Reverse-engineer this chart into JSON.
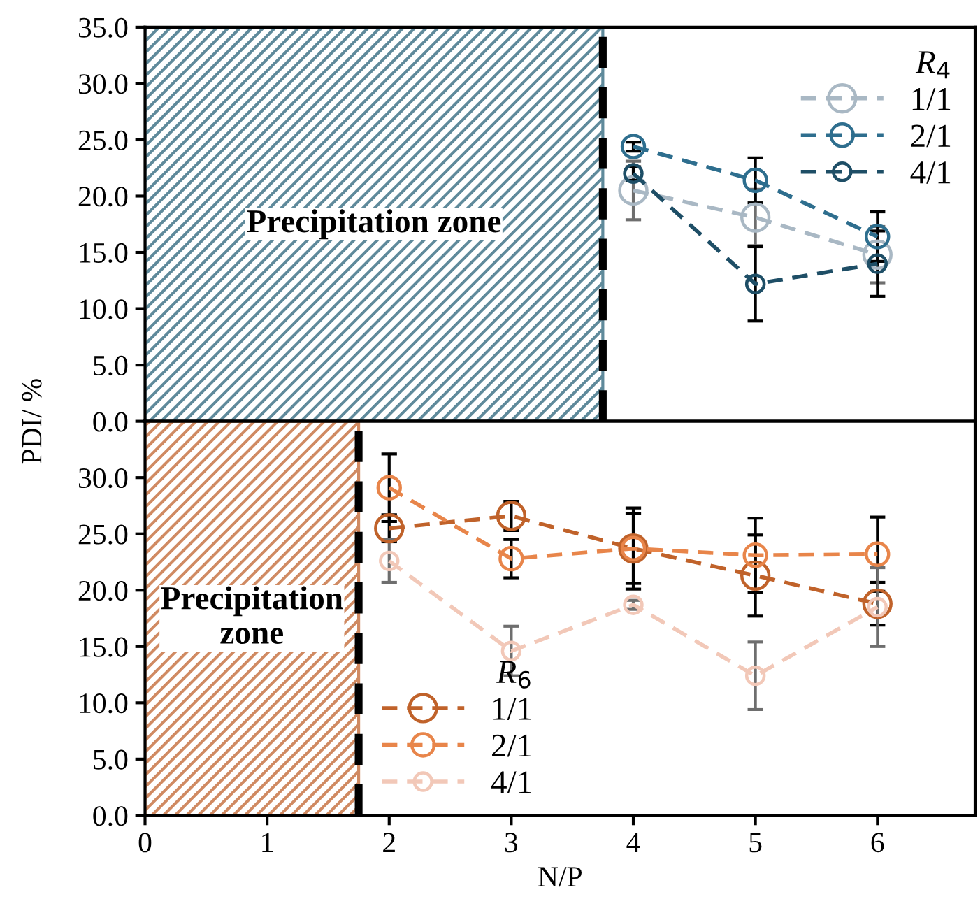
{
  "chart_data": [
    {
      "type": "line",
      "ylabel": "PDI/ %",
      "legend_title": "R$_{4}$",
      "xlim": [
        0,
        6.8
      ],
      "ylim": [
        0,
        35
      ],
      "yticks": [
        {
          "value": 0,
          "label": "0.0"
        },
        {
          "value": 5,
          "label": "5.0"
        },
        {
          "value": 10,
          "label": "10.0"
        },
        {
          "value": 15,
          "label": "15.0"
        },
        {
          "value": 20,
          "label": "20.0"
        },
        {
          "value": 25,
          "label": "25.0"
        },
        {
          "value": 30,
          "label": "30.0"
        },
        {
          "value": 35,
          "label": "35.0"
        }
      ],
      "tick_labels": "y",
      "marker": "circle",
      "line_style": "dashed",
      "grid": false,
      "legend": "top right",
      "bands": [
        {
          "axis": "x",
          "from": 0,
          "to": 3.75,
          "label": "Precipitation zone",
          "color": "#5f8a9b"
        }
      ],
      "ref_lines": [
        {
          "axis": "x",
          "value": 3.75,
          "color": "#000000",
          "line_style": "dashed"
        }
      ],
      "series": [
        {
          "name": "1/1",
          "color": "#a9b8c4",
          "x": [
            4,
            5,
            6
          ],
          "values": [
            20.5,
            18.1,
            14.8
          ],
          "errors": [
            2.6,
            2.5,
            2.5
          ]
        },
        {
          "name": "2/1",
          "color": "#2e6e8e",
          "x": [
            4,
            5,
            6
          ],
          "values": [
            24.4,
            21.4,
            16.4
          ],
          "errors": [
            0.4,
            2.0,
            2.2
          ]
        },
        {
          "name": "4/1",
          "color": "#1e4e66",
          "x": [
            4,
            5,
            6
          ],
          "values": [
            22.0,
            12.2,
            14.0
          ],
          "errors": [
            0.6,
            3.3,
            2.9
          ]
        }
      ]
    },
    {
      "type": "line",
      "xlabel": "N/P",
      "legend_title": "R$_{6}$",
      "xlim": [
        0,
        6.8
      ],
      "ylim": [
        0,
        35
      ],
      "xticks": [
        0,
        1,
        2,
        3,
        4,
        5,
        6
      ],
      "yticks": [
        {
          "value": 0,
          "label": "0.0"
        },
        {
          "value": 5,
          "label": "5.0"
        },
        {
          "value": 10,
          "label": "10.0"
        },
        {
          "value": 15,
          "label": "15.0"
        },
        {
          "value": 20,
          "label": "20.0"
        },
        {
          "value": 25,
          "label": "25.0"
        },
        {
          "value": 30,
          "label": "30.0"
        }
      ],
      "marker": "circle",
      "line_style": "dashed",
      "grid": false,
      "legend": "bottom left",
      "bands": [
        {
          "axis": "x",
          "from": 0,
          "to": 1.75,
          "label": "Precipitation zone",
          "color": "#d08a62"
        }
      ],
      "ref_lines": [
        {
          "axis": "x",
          "value": 1.75,
          "color": "#000000",
          "line_style": "dashed"
        }
      ],
      "series": [
        {
          "name": "1/1",
          "color": "#c0622a",
          "x": [
            2,
            3,
            4,
            5,
            6
          ],
          "values": [
            25.5,
            26.6,
            23.7,
            21.3,
            18.8
          ],
          "errors": [
            1.2,
            1.3,
            3.6,
            3.6,
            1.9
          ]
        },
        {
          "name": "2/1",
          "color": "#e8854a",
          "x": [
            2,
            3,
            4,
            5,
            6
          ],
          "values": [
            29.1,
            22.8,
            23.7,
            23.1,
            23.2
          ],
          "errors": [
            3.0,
            1.7,
            3.1,
            3.3,
            3.3
          ]
        },
        {
          "name": "4/1",
          "color": "#f2c8b8",
          "x": [
            2,
            3,
            4,
            5,
            6
          ],
          "values": [
            22.6,
            14.6,
            18.7,
            12.4,
            18.5
          ],
          "errors": [
            1.9,
            2.2,
            0.4,
            3.0,
            3.5
          ]
        }
      ]
    }
  ]
}
